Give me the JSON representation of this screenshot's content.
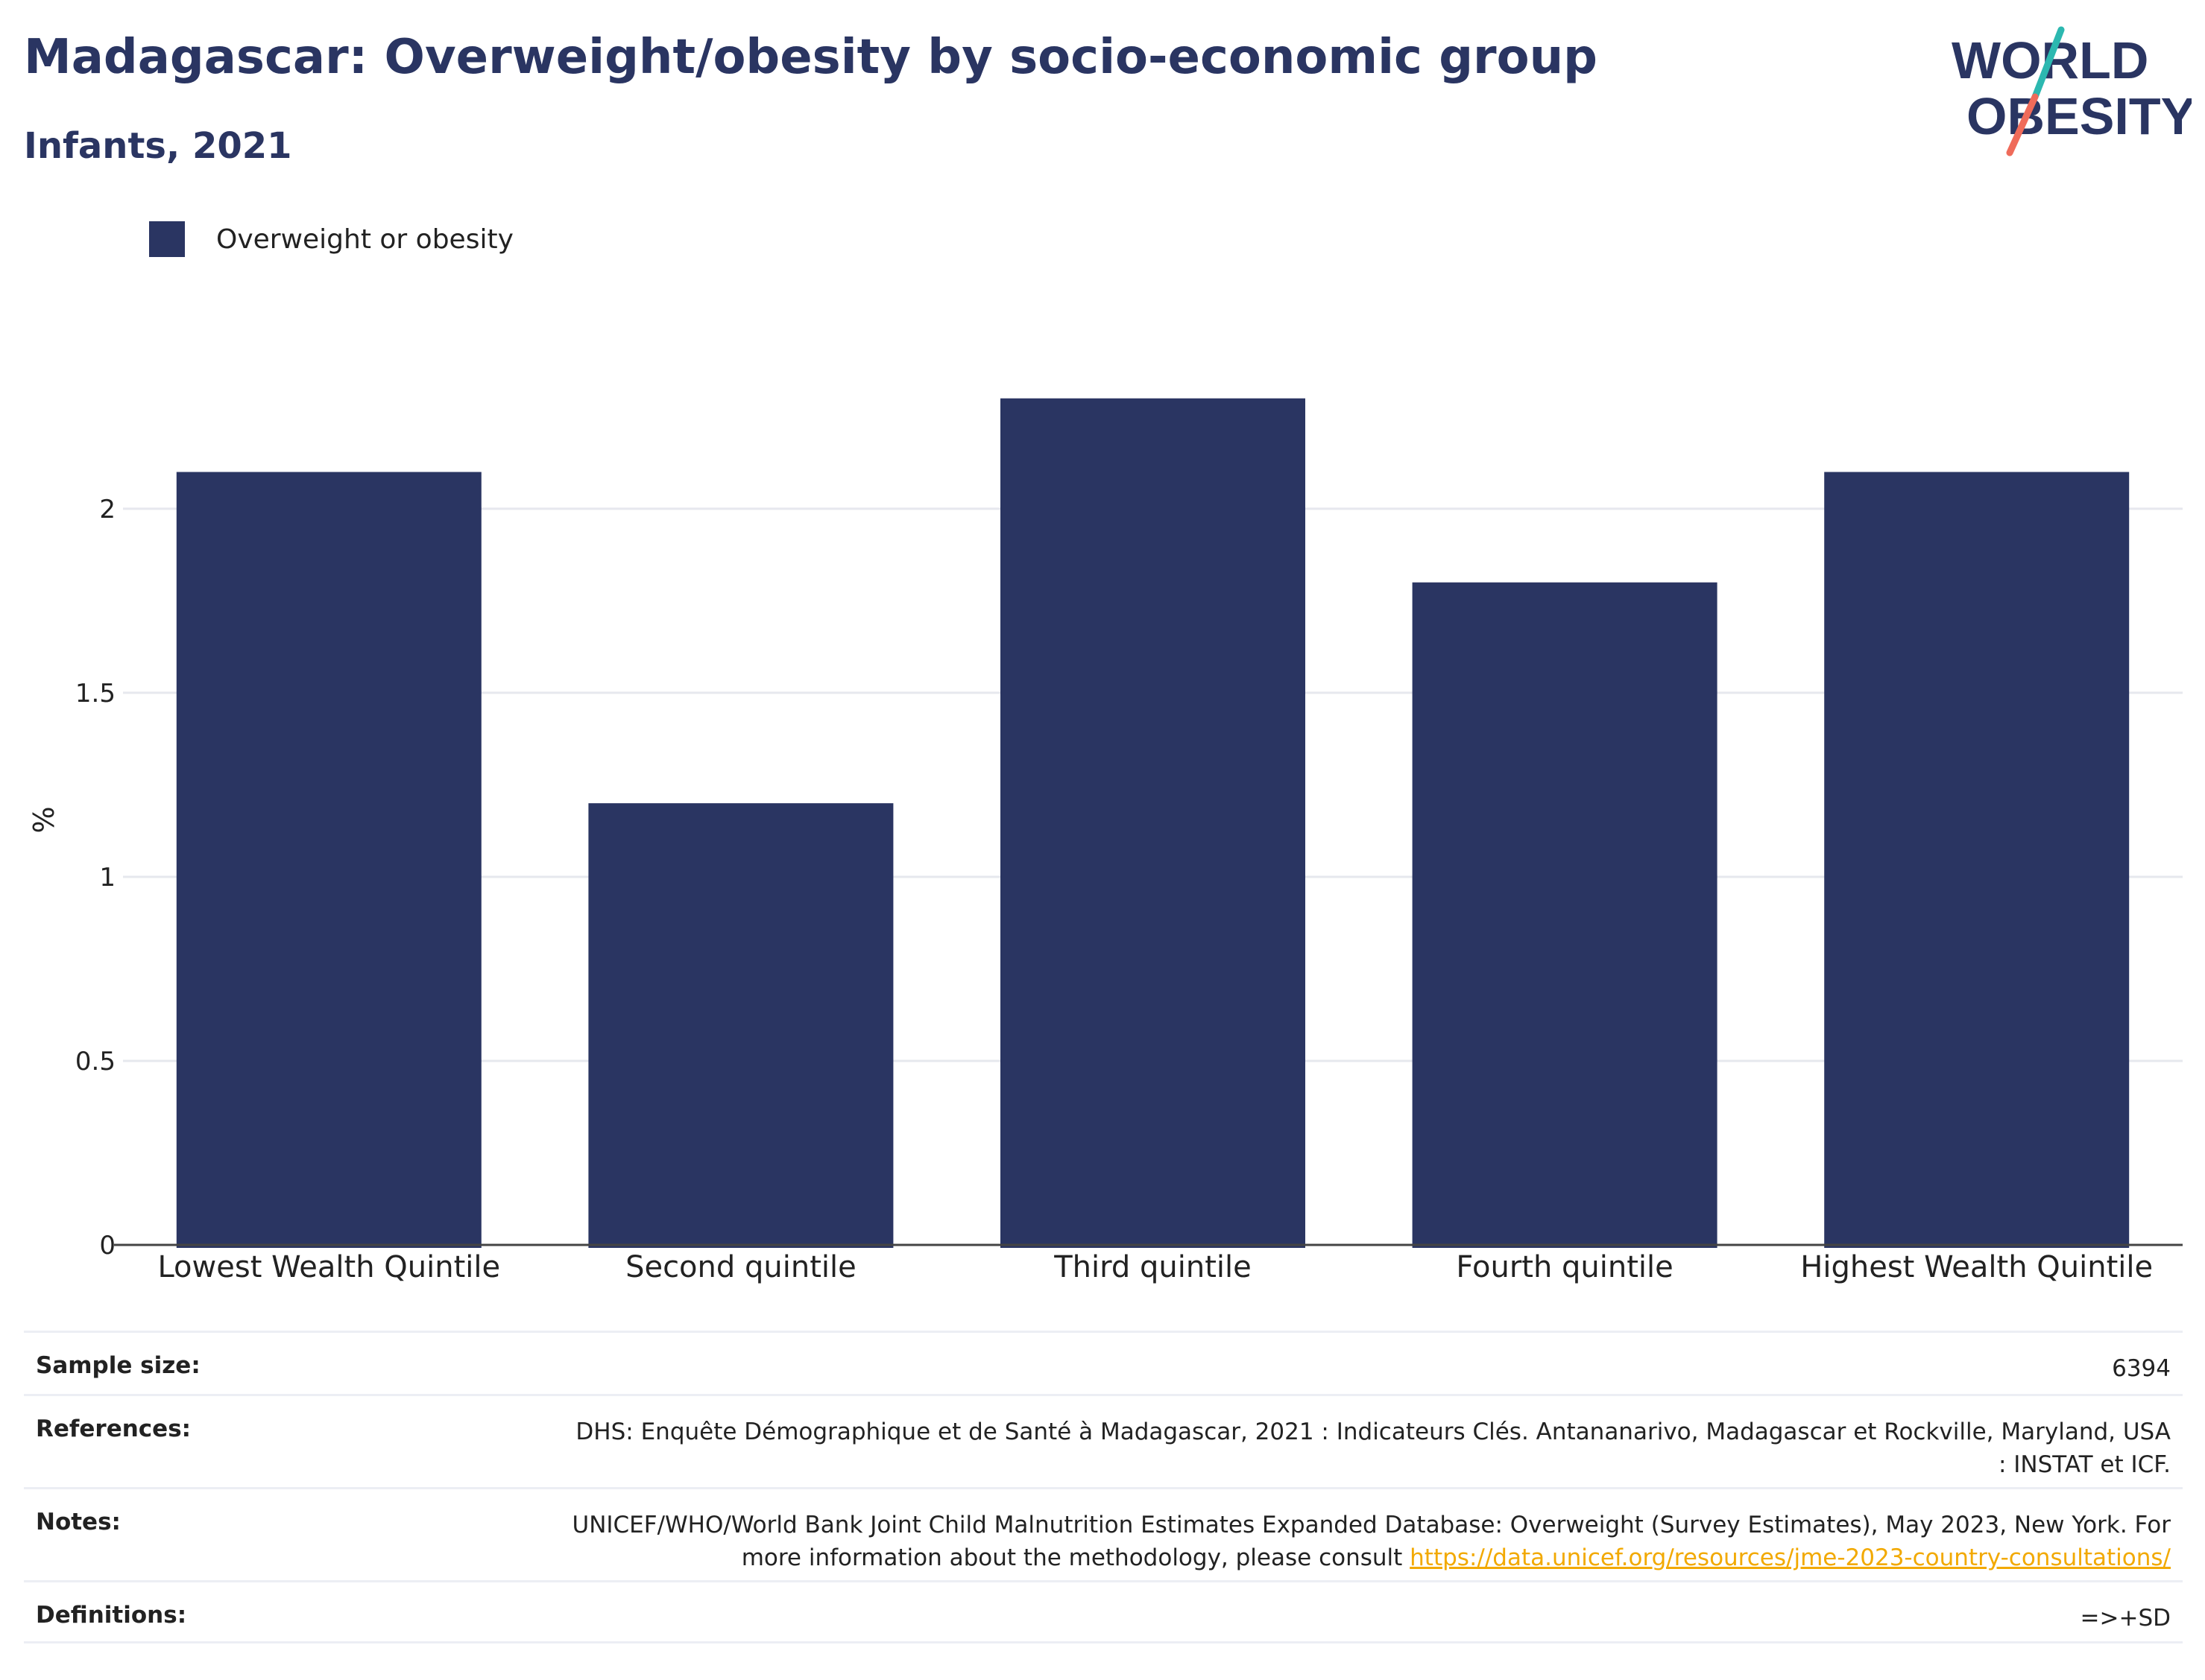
{
  "header": {
    "title": "Madagascar: Overweight/obesity by socio-economic group",
    "subtitle": "Infants, 2021"
  },
  "logo": {
    "line1": "WORLD",
    "line2": "OBESITY",
    "colors": {
      "navy": "#2a3562",
      "teal": "#2cb8b0",
      "coral": "#ef6b5a"
    }
  },
  "legend": {
    "label": "Overweight or obesity",
    "color": "#2a3562"
  },
  "chart_data": {
    "type": "bar",
    "categories": [
      "Lowest Wealth Quintile",
      "Second quintile",
      "Third quintile",
      "Fourth quintile",
      "Highest Wealth Quintile"
    ],
    "series": [
      {
        "name": "Overweight or obesity",
        "values": [
          2.1,
          1.2,
          2.3,
          1.8,
          2.1
        ],
        "color": "#2a3562"
      }
    ],
    "title": "",
    "xlabel": "",
    "ylabel": "%",
    "ylim": [
      0,
      2.35
    ],
    "yticks": [
      0,
      0.5,
      1,
      1.5,
      2
    ],
    "ytick_labels": [
      "0",
      "0.5",
      "1",
      "1.5",
      "2"
    ],
    "grid": true,
    "legend_position": "top-left"
  },
  "meta": {
    "sample_size": {
      "label": "Sample size:",
      "value": "6394"
    },
    "references": {
      "label": "References:",
      "value": "DHS: Enquête Démographique et de Santé à Madagascar, 2021 : Indicateurs Clés. Antananarivo, Madagascar et Rockville, Maryland, USA : INSTAT et ICF."
    },
    "notes": {
      "label": "Notes:",
      "value": "UNICEF/WHO/World Bank Joint Child Malnutrition Estimates Expanded Database: Overweight (Survey Estimates), May 2023, New York. For more information about the methodology, please consult ",
      "link": "https://data.unicef.org/resources/jme-2023-country-consultations/"
    },
    "definitions": {
      "label": "Definitions:",
      "value": "=>+SD"
    }
  }
}
